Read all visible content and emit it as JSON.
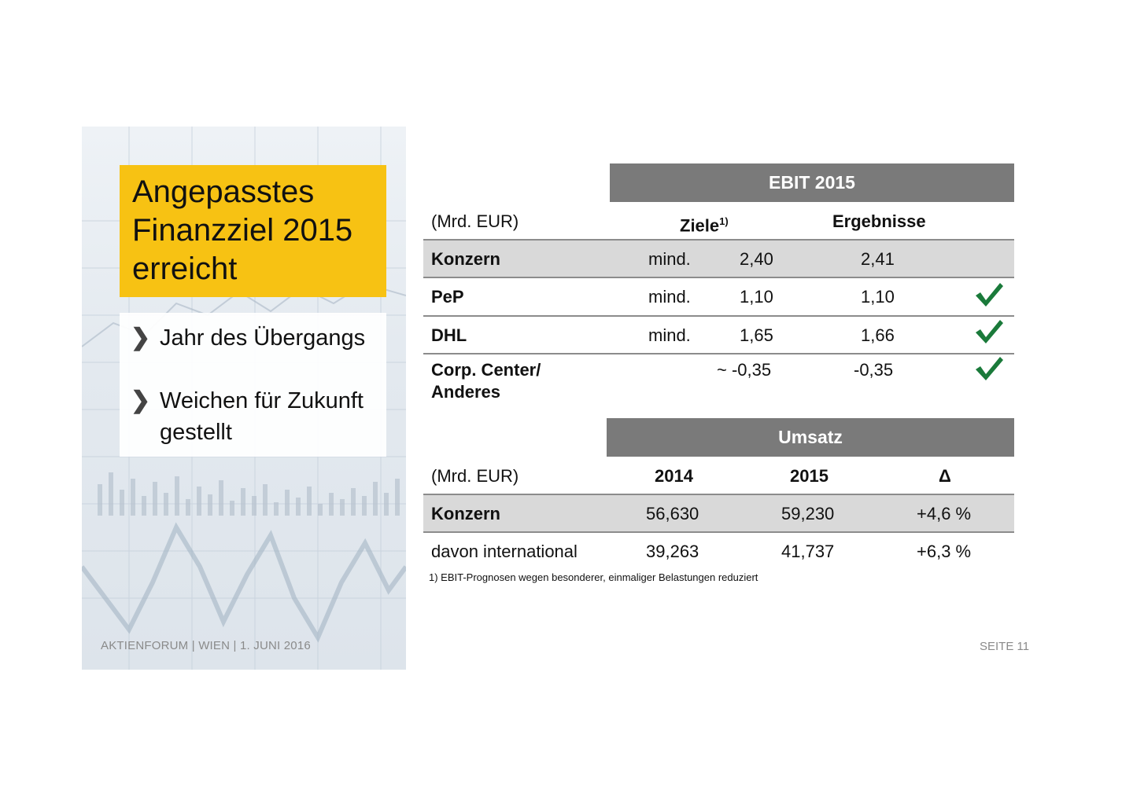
{
  "left": {
    "title": "Angepasstes Finanzziel 2015 erreicht",
    "bullets": [
      "Jahr des Übergangs",
      "Weichen für Zukunft gestellt"
    ],
    "bullet_glyph": "❯",
    "footer": "AKTIENFORUM | WIEN | 1. JUNI 2016"
  },
  "ebit": {
    "header": "EBIT 2015",
    "unit": "(Mrd. EUR)",
    "col_targets": "Ziele",
    "col_targets_footnote": "1)",
    "col_results": "Ergebnisse",
    "rows": [
      {
        "label": "Konzern",
        "qualifier": "mind.",
        "target": "2,40",
        "result": "2,41",
        "check": false,
        "shaded": true
      },
      {
        "label": "PeP",
        "qualifier": "mind.",
        "target": "1,10",
        "result": "1,10",
        "check": true,
        "shaded": false
      },
      {
        "label": "DHL",
        "qualifier": "mind.",
        "target": "1,65",
        "result": "1,66",
        "check": true,
        "shaded": false
      },
      {
        "label": "Corp. Center/ Anderes",
        "label_line1": "Corp. Center/",
        "label_line2": "Anderes",
        "qualifier": "",
        "target": "~ -0,35",
        "result": "-0,35",
        "check": true,
        "shaded": false
      }
    ],
    "check_color": "#1a7a3a"
  },
  "umsatz": {
    "header": "Umsatz",
    "unit": "(Mrd. EUR)",
    "col_2014": "2014",
    "col_2015": "2015",
    "col_delta": "Δ",
    "rows": [
      {
        "label": "Konzern",
        "v2014": "56,630",
        "v2015": "59,230",
        "delta": "+4,6 %",
        "shaded": true
      },
      {
        "label": "davon international",
        "v2014": "39,263",
        "v2015": "41,737",
        "delta": "+6,3 %",
        "shaded": false
      }
    ]
  },
  "footnote": "1) EBIT-Prognosen wegen besonderer, einmaliger Belastungen reduziert",
  "page": "SEITE 11",
  "colors": {
    "accent_yellow": "#f7c213",
    "header_gray": "#7a7a7a",
    "row_shade": "#d9d9d9"
  }
}
